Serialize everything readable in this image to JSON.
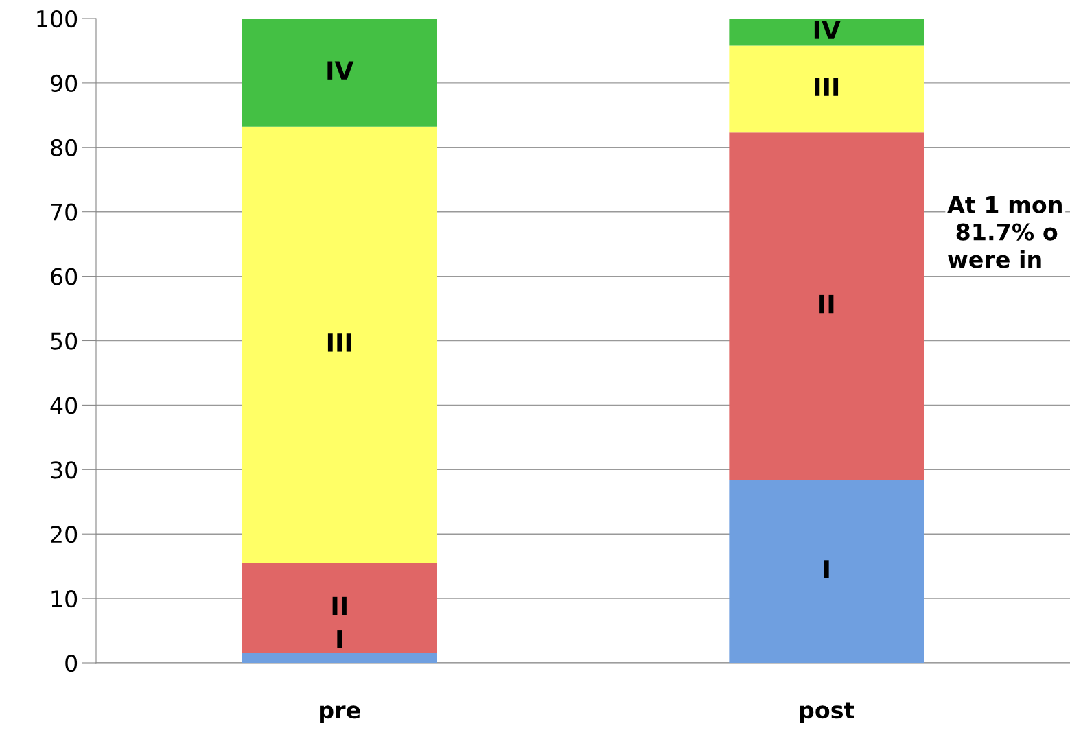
{
  "chart_data": {
    "type": "bar",
    "stacked": true,
    "categories": [
      "pre",
      "post"
    ],
    "series": [
      {
        "name": "I",
        "color": "#6f9fe0",
        "values": [
          1.5,
          28.4
        ]
      },
      {
        "name": "II",
        "color": "#e06666",
        "values": [
          14.0,
          53.9
        ]
      },
      {
        "name": "III",
        "color": "#ffff66",
        "values": [
          67.7,
          13.5
        ]
      },
      {
        "name": "IV",
        "color": "#44c044",
        "values": [
          16.8,
          4.2
        ]
      }
    ],
    "ylim": [
      0,
      100
    ],
    "yticks": [
      0,
      10,
      20,
      30,
      40,
      50,
      60,
      70,
      80,
      90,
      100
    ],
    "grid": "y",
    "legend": false,
    "annotations": [
      "At 1 mon\n 81.7% o\nwere in"
    ]
  }
}
